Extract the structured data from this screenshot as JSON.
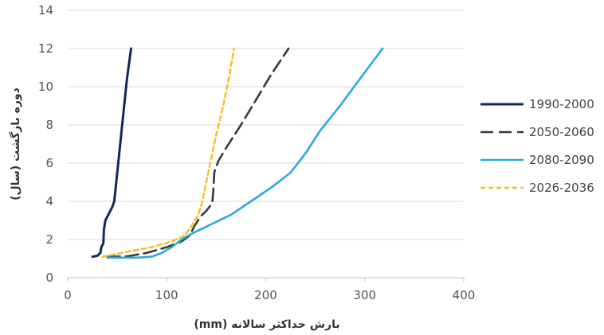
{
  "chart_data": {
    "type": "line",
    "xlabel": "بارش حداکثر سالانه (mm)",
    "ylabel": "دوره بازگشت (سال)",
    "xlim": [
      0,
      400
    ],
    "ylim": [
      0,
      14
    ],
    "xticks": [
      0,
      100,
      200,
      300,
      400
    ],
    "yticks": [
      0,
      2,
      4,
      6,
      8,
      10,
      12,
      14
    ],
    "grid": "horizontal",
    "legend_position": "right",
    "series": [
      {
        "name": "1990-2000",
        "color": "#14275a",
        "dash": "solid",
        "points": [
          [
            25,
            1.1
          ],
          [
            30,
            1.15
          ],
          [
            33,
            1.3
          ],
          [
            34,
            1.6
          ],
          [
            36,
            1.8
          ],
          [
            36.5,
            2.5
          ],
          [
            38,
            3.0
          ],
          [
            42,
            3.4
          ],
          [
            45,
            3.7
          ],
          [
            47,
            4.0
          ],
          [
            49,
            5.0
          ],
          [
            51,
            6.0
          ],
          [
            54,
            7.5
          ],
          [
            57,
            9.0
          ],
          [
            60,
            10.5
          ],
          [
            64,
            12.0
          ]
        ]
      },
      {
        "name": "2050-2060",
        "color": "#3a3a3a",
        "dash": "long-dash",
        "points": [
          [
            40,
            1.1
          ],
          [
            60,
            1.12
          ],
          [
            80,
            1.3
          ],
          [
            100,
            1.6
          ],
          [
            115,
            1.9
          ],
          [
            123,
            2.2
          ],
          [
            128,
            2.7
          ],
          [
            134,
            3.2
          ],
          [
            140,
            3.5
          ],
          [
            146,
            3.9
          ],
          [
            147,
            4.5
          ],
          [
            148,
            5.5
          ],
          [
            152,
            6.1
          ],
          [
            160,
            6.8
          ],
          [
            175,
            8.0
          ],
          [
            190,
            9.3
          ],
          [
            205,
            10.6
          ],
          [
            223,
            12.0
          ]
        ]
      },
      {
        "name": "2080-2090",
        "color": "#2ea8d8",
        "dash": "solid",
        "points": [
          [
            40,
            1.05
          ],
          [
            70,
            1.05
          ],
          [
            85,
            1.1
          ],
          [
            95,
            1.3
          ],
          [
            105,
            1.6
          ],
          [
            115,
            2.0
          ],
          [
            125,
            2.3
          ],
          [
            135,
            2.55
          ],
          [
            145,
            2.8
          ],
          [
            165,
            3.3
          ],
          [
            185,
            4.0
          ],
          [
            205,
            4.7
          ],
          [
            225,
            5.5
          ],
          [
            240,
            6.5
          ],
          [
            255,
            7.7
          ],
          [
            275,
            9.0
          ],
          [
            295,
            10.4
          ],
          [
            318,
            12.0
          ]
        ]
      },
      {
        "name": "2026-2036",
        "color": "#f2c12e",
        "dash": "short-dash",
        "points": [
          [
            35,
            1.1
          ],
          [
            60,
            1.35
          ],
          [
            85,
            1.6
          ],
          [
            105,
            1.9
          ],
          [
            118,
            2.2
          ],
          [
            125,
            2.7
          ],
          [
            132,
            3.3
          ],
          [
            136,
            4.0
          ],
          [
            140,
            5.0
          ],
          [
            144,
            6.0
          ],
          [
            150,
            7.5
          ],
          [
            157,
            9.0
          ],
          [
            163,
            10.5
          ],
          [
            168,
            12.0
          ]
        ]
      }
    ]
  }
}
